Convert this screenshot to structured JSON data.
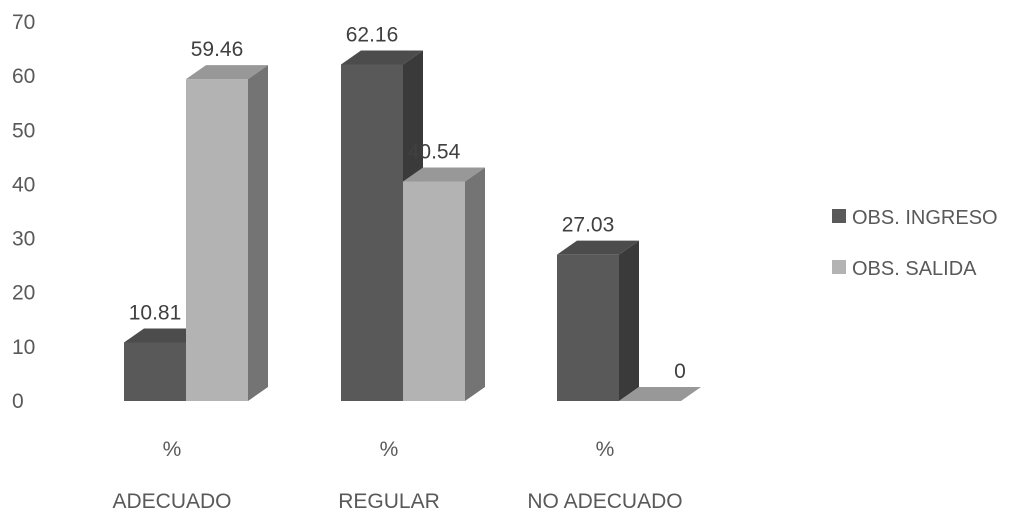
{
  "chart_data": {
    "type": "bar",
    "style": "3d-clustered-column",
    "categories": [
      {
        "prefix": "%",
        "name": "ADECUADO"
      },
      {
        "prefix": "%",
        "name": "REGULAR"
      },
      {
        "prefix": "%",
        "name": "NO ADECUADO"
      }
    ],
    "series": [
      {
        "name": "OBS. INGRESO",
        "values": [
          10.81,
          62.16,
          27.03
        ],
        "labels": [
          "10.81",
          "62.16",
          "27.03"
        ],
        "color": "#595959"
      },
      {
        "name": "OBS. SALIDA",
        "values": [
          59.46,
          40.54,
          0
        ],
        "labels": [
          "59.46",
          "40.54",
          "0"
        ],
        "color": "#b3b3b3"
      }
    ],
    "yticks": [
      "0",
      "10",
      "20",
      "30",
      "40",
      "50",
      "60",
      "70"
    ],
    "ylim": [
      0,
      70
    ],
    "grid": false,
    "legend_position": "right",
    "title": "",
    "xlabel": "",
    "ylabel": ""
  }
}
